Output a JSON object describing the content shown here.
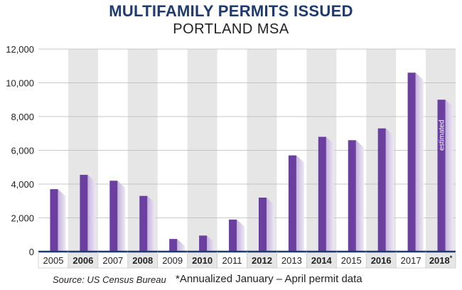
{
  "chart_data": {
    "type": "bar",
    "title": "MULTIFAMILY PERMITS ISSUED",
    "subtitle": "PORTLAND MSA",
    "categories": [
      "2005",
      "2006",
      "2007",
      "2008",
      "2009",
      "2010",
      "2011",
      "2012",
      "2013",
      "2014",
      "2015",
      "2016",
      "2017",
      "2018*"
    ],
    "values": [
      3700,
      4550,
      4200,
      3300,
      750,
      950,
      1900,
      3200,
      5700,
      6800,
      6600,
      7300,
      10600,
      9000
    ],
    "ylim": [
      0,
      12000
    ],
    "yticks": [
      "0",
      "2,000",
      "4,000",
      "6,000",
      "8,000",
      "10,000",
      "12,000"
    ],
    "ytick_values": [
      0,
      2000,
      4000,
      6000,
      8000,
      10000,
      12000
    ],
    "bar_annotation": {
      "category": "2018*",
      "text": "estimated"
    },
    "colors": {
      "bar": "#6a3fa0",
      "shaded_band": "#e6e6e6",
      "axis": "#1f3a6e"
    }
  },
  "footer": {
    "source": "Source: US Census Bureau",
    "note": "*Annualized January – April permit data"
  }
}
